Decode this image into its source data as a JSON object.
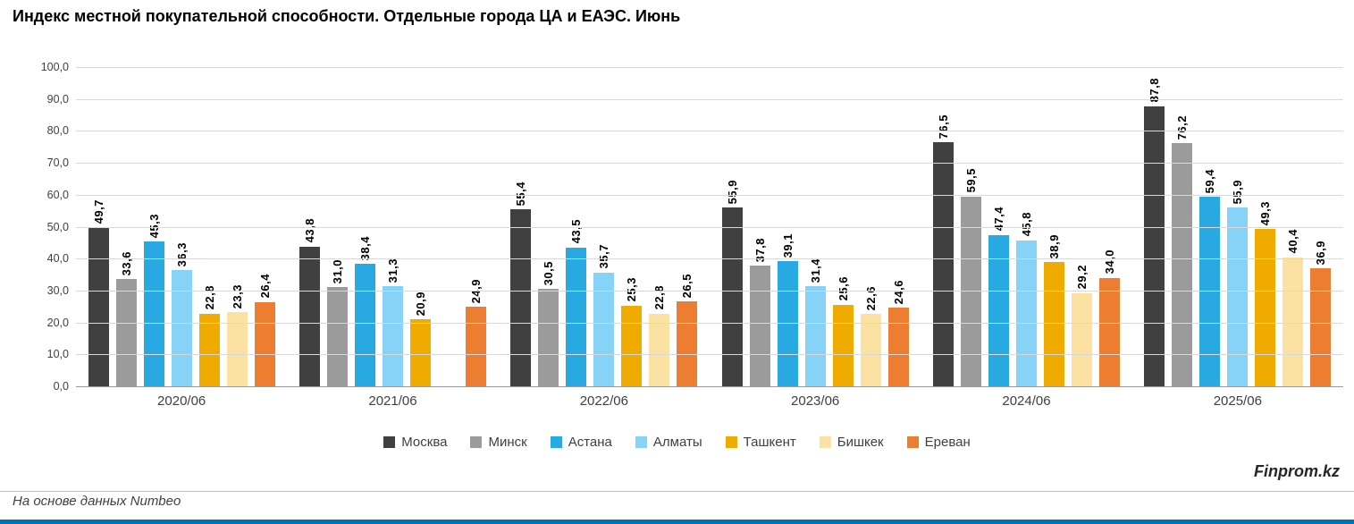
{
  "title": "Индекс местной покупательной способности. Отдельные города ЦА и ЕАЭС. Июнь",
  "source_note": "На основе данных Numbeo",
  "branding": "Finprom.kz",
  "accent_bar_color": "#0070c0",
  "chart_data": {
    "type": "bar",
    "title": "Индекс местной покупательной способности. Отдельные города ЦА и ЕАЭС. Июнь",
    "categories": [
      "2020/06",
      "2021/06",
      "2022/06",
      "2023/06",
      "2024/06",
      "2025/06"
    ],
    "series": [
      {
        "name": "Москва",
        "color": "#404040",
        "values": [
          49.7,
          43.8,
          55.4,
          55.9,
          76.5,
          87.8
        ]
      },
      {
        "name": "Минск",
        "color": "#9b9b9b",
        "values": [
          33.6,
          31.0,
          30.5,
          37.8,
          59.5,
          76.2
        ]
      },
      {
        "name": "Астана",
        "color": "#29a9e1",
        "values": [
          45.3,
          38.4,
          43.5,
          39.1,
          47.4,
          59.4
        ]
      },
      {
        "name": "Алматы",
        "color": "#86d3f7",
        "values": [
          36.3,
          31.3,
          35.7,
          31.4,
          45.8,
          55.9
        ]
      },
      {
        "name": "Ташкент",
        "color": "#f0ab00",
        "values": [
          22.8,
          20.9,
          25.3,
          25.6,
          38.9,
          49.3
        ]
      },
      {
        "name": "Бишкек",
        "color": "#fbe2a2",
        "values": [
          23.3,
          null,
          22.8,
          22.6,
          29.2,
          40.4
        ]
      },
      {
        "name": "Ереван",
        "color": "#ed7d31",
        "values": [
          26.4,
          24.9,
          26.5,
          24.6,
          34.0,
          36.9
        ]
      }
    ],
    "ylim": [
      0,
      100
    ],
    "yticks": [
      0,
      10,
      20,
      30,
      40,
      50,
      60,
      70,
      80,
      90,
      100
    ],
    "ytick_labels": [
      "0,0",
      "10,0",
      "20,0",
      "30,0",
      "40,0",
      "50,0",
      "60,0",
      "70,0",
      "80,0",
      "90,0",
      "100,0"
    ],
    "decimal_separator": ",",
    "grid": true,
    "legend_position": "bottom",
    "value_labels": "rotated-90"
  }
}
